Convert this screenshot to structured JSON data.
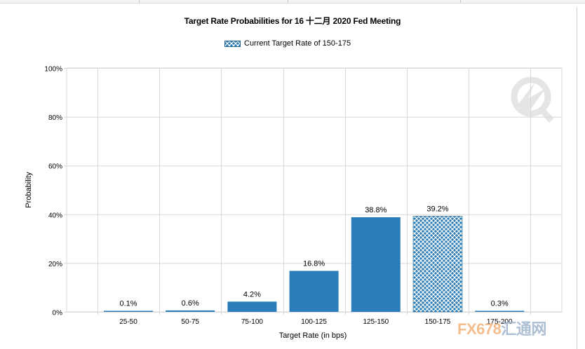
{
  "title": "Target Rate Probabilities for 16 十二月 2020 Fed Meeting",
  "legend_label": "Current Target Rate of 150-175",
  "watermark": {
    "part1": "FX678",
    "part2": "汇通网"
  },
  "colors": {
    "bar": "#2a7db8",
    "current_bar": "#2a7db8",
    "hatch": "#ffffff",
    "grid": "#d8d8d8"
  },
  "chart_data": {
    "type": "bar",
    "title": "Target Rate Probabilities for 16 十二月 2020 Fed Meeting",
    "xlabel": "Target Rate (in bps)",
    "ylabel": "Probability",
    "categories": [
      "25-50",
      "50-75",
      "75-100",
      "100-125",
      "125-150",
      "150-175",
      "175-200"
    ],
    "values": [
      0.1,
      0.6,
      4.2,
      16.8,
      38.8,
      39.2,
      0.3
    ],
    "value_labels": [
      "0.1%",
      "0.6%",
      "4.2%",
      "16.8%",
      "38.8%",
      "39.2%",
      "0.3%"
    ],
    "current_category": "150-175",
    "ylim": [
      0,
      100
    ],
    "yticks": [
      0,
      20,
      40,
      60,
      80,
      100
    ],
    "ytick_labels": [
      "0%",
      "20%",
      "40%",
      "60%",
      "80%",
      "100%"
    ],
    "grid": true,
    "legend_position": "top-center"
  }
}
